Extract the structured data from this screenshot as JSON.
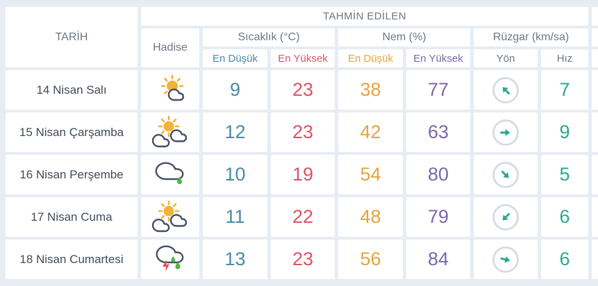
{
  "colors": {
    "background": "#e7edf3",
    "cell": "#ffffff",
    "header_text": "#6d7684",
    "date_text": "#404b58",
    "temp_min": "#4a8aa8",
    "temp_max": "#dc5365",
    "humidity_min": "#e4a43e",
    "humidity_max": "#7a69a9",
    "wind": "#2aa98e",
    "wind_circle": "#d7dce3",
    "sun": "#f2b337",
    "cloud": "#454f63",
    "rain": "#4db648",
    "lightning": "#e84f5e"
  },
  "table": {
    "header": {
      "tahmin": "TAHMİN EDİLEN",
      "tarih": "TARİH",
      "hadise": "Hadise",
      "groups": [
        {
          "label": "Sıcaklık (°C)",
          "sub": [
            "En Düşük",
            "En Yüksek"
          ]
        },
        {
          "label": "Nem (%)",
          "sub": [
            "En Düşük",
            "En Yüksek"
          ]
        },
        {
          "label": "Rüzgar (km/sa)",
          "sub": [
            "Yön",
            "Hız"
          ]
        }
      ]
    },
    "rows": [
      {
        "date": "14 Nisan Salı",
        "icon": "sun-behind-small-cloud-icon",
        "icon_type": "partly-sunny",
        "temp_min": "9",
        "temp_max": "23",
        "humidity_min": "38",
        "humidity_max": "77",
        "wind_dir": "up-left",
        "wind_deg": -135,
        "wind_speed": "7"
      },
      {
        "date": "15 Nisan Çarşamba",
        "icon": "sun-behind-clouds-icon",
        "icon_type": "partly-cloudy",
        "temp_min": "12",
        "temp_max": "23",
        "humidity_min": "42",
        "humidity_max": "63",
        "wind_dir": "right",
        "wind_deg": 0,
        "wind_speed": "9"
      },
      {
        "date": "16 Nisan Perşembe",
        "icon": "rain-cloud-icon",
        "icon_type": "light-rain",
        "temp_min": "10",
        "temp_max": "19",
        "humidity_min": "54",
        "humidity_max": "80",
        "wind_dir": "down-right",
        "wind_deg": 45,
        "wind_speed": "5"
      },
      {
        "date": "17 Nisan Cuma",
        "icon": "sun-behind-clouds-icon",
        "icon_type": "partly-cloudy",
        "temp_min": "11",
        "temp_max": "22",
        "humidity_min": "48",
        "humidity_max": "79",
        "wind_dir": "down-left",
        "wind_deg": 135,
        "wind_speed": "6"
      },
      {
        "date": "18 Nisan Cumartesi",
        "icon": "thunderstorm-cloud-icon",
        "icon_type": "thunderstorm",
        "temp_min": "13",
        "temp_max": "23",
        "humidity_min": "56",
        "humidity_max": "84",
        "wind_dir": "right-down",
        "wind_deg": 15,
        "wind_speed": "6"
      }
    ]
  }
}
